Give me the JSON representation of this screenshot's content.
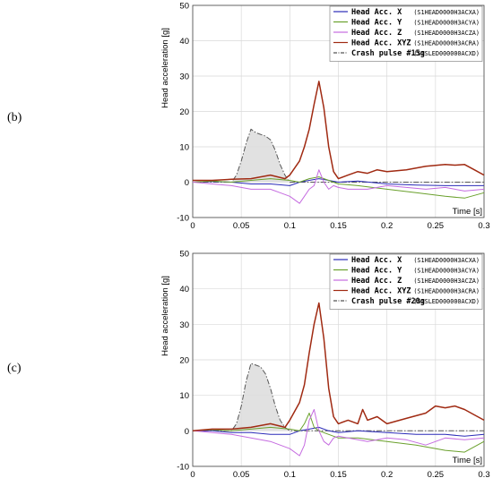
{
  "chart_data": [
    {
      "type": "line",
      "panel_label": "(b)",
      "xlabel": "Time [s]",
      "ylabel": "Head acceleration [g]",
      "xlim": [
        0,
        0.3
      ],
      "ylim": [
        -10,
        50
      ],
      "xticks": [
        "0",
        "0.05",
        "0.1",
        "0.15",
        "0.2",
        "0.25",
        "0.3"
      ],
      "yticks": [
        "-10",
        "0",
        "10",
        "20",
        "30",
        "40",
        "50"
      ],
      "grid": true,
      "legend_position": "top-right",
      "series": [
        {
          "name": "Head Acc. X",
          "code": "(S1HEAD0000H3ACXA)",
          "color": "#2b2bb8",
          "style": "solid",
          "x": [
            0,
            0.02,
            0.04,
            0.06,
            0.08,
            0.1,
            0.11,
            0.12,
            0.13,
            0.14,
            0.15,
            0.17,
            0.2,
            0.23,
            0.26,
            0.28,
            0.3
          ],
          "y": [
            0,
            0.2,
            0,
            -0.5,
            -0.5,
            -1,
            0,
            0.5,
            1,
            0.5,
            0,
            0.3,
            -0.5,
            -0.8,
            -1,
            -1,
            -1
          ]
        },
        {
          "name": "Head Acc. Y",
          "code": "(S1HEAD0000H3ACYA)",
          "color": "#6aa02c",
          "style": "solid",
          "x": [
            0,
            0.02,
            0.04,
            0.06,
            0.08,
            0.1,
            0.11,
            0.12,
            0.13,
            0.14,
            0.15,
            0.17,
            0.2,
            0.23,
            0.26,
            0.28,
            0.3
          ],
          "y": [
            0,
            0.3,
            0,
            0.5,
            1,
            0.5,
            0,
            1,
            1.5,
            0.5,
            -0.5,
            -1,
            -2,
            -3,
            -4,
            -4.5,
            -3
          ]
        },
        {
          "name": "Head Acc. Z",
          "code": "(S1HEAD0000H3ACZA)",
          "color": "#c56be0",
          "style": "solid",
          "x": [
            0,
            0.02,
            0.04,
            0.06,
            0.08,
            0.09,
            0.1,
            0.11,
            0.115,
            0.12,
            0.125,
            0.13,
            0.135,
            0.14,
            0.145,
            0.15,
            0.16,
            0.18,
            0.2,
            0.22,
            0.24,
            0.26,
            0.28,
            0.3
          ],
          "y": [
            0,
            -0.5,
            -1,
            -2,
            -2,
            -3,
            -4,
            -6,
            -4,
            -2,
            -1,
            3.5,
            0,
            -2,
            -1,
            -1.5,
            -2,
            -2,
            -1,
            -1.5,
            -2,
            -1.5,
            -2.5,
            -2
          ]
        },
        {
          "name": "Head Acc. XYZ",
          "code": "(S1HEAD0000H3ACRA)",
          "color": "#a02a12",
          "style": "solid",
          "x": [
            0,
            0.02,
            0.04,
            0.06,
            0.08,
            0.095,
            0.1,
            0.11,
            0.115,
            0.12,
            0.125,
            0.13,
            0.135,
            0.14,
            0.145,
            0.15,
            0.16,
            0.17,
            0.18,
            0.19,
            0.2,
            0.22,
            0.24,
            0.26,
            0.27,
            0.28,
            0.29,
            0.3
          ],
          "y": [
            0.5,
            0.5,
            0.8,
            1,
            2,
            1,
            2,
            6,
            10,
            15,
            22,
            28.5,
            21,
            10,
            3,
            1,
            2,
            3,
            2.5,
            3.5,
            3,
            3.5,
            4.5,
            5,
            4.8,
            5,
            3.5,
            2
          ]
        },
        {
          "name": "Crash pulse #15g",
          "code": "(S1SLED000000ACXD)",
          "color": "#555555",
          "style": "dashdot",
          "fill": "#dcdcdc",
          "x": [
            0,
            0.02,
            0.04,
            0.045,
            0.05,
            0.055,
            0.06,
            0.065,
            0.07,
            0.075,
            0.08,
            0.085,
            0.09,
            0.095,
            0.1,
            0.11,
            0.13,
            0.15,
            0.2,
            0.25,
            0.3
          ],
          "y": [
            0,
            0,
            0,
            2,
            6,
            11,
            15,
            14,
            13.5,
            13,
            12,
            9,
            5,
            2,
            0,
            0,
            0,
            0,
            0,
            0,
            0
          ]
        }
      ]
    },
    {
      "type": "line",
      "panel_label": "(c)",
      "xlabel": "Time [s]",
      "ylabel": "Head acceleration [g]",
      "xlim": [
        0,
        0.3
      ],
      "ylim": [
        -10,
        50
      ],
      "xticks": [
        "0",
        "0.05",
        "0.1",
        "0.15",
        "0.2",
        "0.25",
        "0.3"
      ],
      "yticks": [
        "-10",
        "0",
        "10",
        "20",
        "30",
        "40",
        "50"
      ],
      "grid": true,
      "legend_position": "top-right",
      "series": [
        {
          "name": "Head Acc. X",
          "code": "(S1HEAD0000H3ACXA)",
          "color": "#2b2bb8",
          "style": "solid",
          "x": [
            0,
            0.02,
            0.04,
            0.06,
            0.08,
            0.1,
            0.11,
            0.12,
            0.13,
            0.14,
            0.15,
            0.17,
            0.2,
            0.23,
            0.26,
            0.28,
            0.3
          ],
          "y": [
            0,
            0,
            -0.5,
            -0.5,
            -1,
            -1,
            0,
            0.5,
            1,
            0,
            -0.5,
            0,
            -0.5,
            -1,
            -1,
            -1.5,
            -1
          ]
        },
        {
          "name": "Head Acc. Y",
          "code": "(S1HEAD0000H3ACYA)",
          "color": "#6aa02c",
          "style": "solid",
          "x": [
            0,
            0.02,
            0.04,
            0.06,
            0.08,
            0.1,
            0.11,
            0.115,
            0.12,
            0.125,
            0.13,
            0.14,
            0.15,
            0.17,
            0.2,
            0.23,
            0.26,
            0.28,
            0.3
          ],
          "y": [
            0,
            0.3,
            0,
            0.5,
            1,
            0.5,
            0,
            2,
            5,
            1,
            0,
            -1,
            -2,
            -2,
            -3,
            -4,
            -5.5,
            -6,
            -3
          ]
        },
        {
          "name": "Head Acc. Z",
          "code": "(S1HEAD0000H3ACZA)",
          "color": "#c56be0",
          "style": "solid",
          "x": [
            0,
            0.02,
            0.04,
            0.06,
            0.08,
            0.09,
            0.1,
            0.11,
            0.115,
            0.12,
            0.125,
            0.13,
            0.135,
            0.14,
            0.145,
            0.15,
            0.16,
            0.18,
            0.2,
            0.22,
            0.24,
            0.26,
            0.28,
            0.3
          ],
          "y": [
            0,
            -0.5,
            -1,
            -2,
            -3,
            -4,
            -5,
            -7,
            -4,
            3,
            6,
            0,
            -3,
            -4,
            -2,
            -1.5,
            -2,
            -3,
            -2,
            -2.5,
            -4,
            -2,
            -2.5,
            -2
          ]
        },
        {
          "name": "Head Acc. XYZ",
          "code": "(S1HEAD0000H3ACRA)",
          "color": "#a02a12",
          "style": "solid",
          "x": [
            0,
            0.02,
            0.04,
            0.06,
            0.08,
            0.095,
            0.1,
            0.11,
            0.115,
            0.12,
            0.125,
            0.13,
            0.135,
            0.14,
            0.145,
            0.15,
            0.16,
            0.17,
            0.175,
            0.18,
            0.19,
            0.2,
            0.22,
            0.24,
            0.25,
            0.26,
            0.27,
            0.28,
            0.29,
            0.3
          ],
          "y": [
            0,
            0.5,
            0.5,
            1,
            2,
            1,
            3,
            8,
            13,
            22,
            30,
            36,
            26,
            12,
            4,
            2,
            3,
            2,
            6,
            3,
            4,
            2,
            3.5,
            5,
            7,
            6.5,
            7,
            6,
            4.5,
            3
          ]
        },
        {
          "name": "Crash pulse #20g",
          "code": "(S1SLED000000ACXD)",
          "color": "#555555",
          "style": "dashdot",
          "fill": "#dcdcdc",
          "x": [
            0,
            0.02,
            0.04,
            0.045,
            0.05,
            0.055,
            0.06,
            0.065,
            0.07,
            0.075,
            0.08,
            0.085,
            0.09,
            0.095,
            0.1,
            0.11,
            0.13,
            0.15,
            0.2,
            0.25,
            0.3
          ],
          "y": [
            0,
            0,
            0,
            2,
            7,
            14,
            19,
            18.5,
            18,
            16,
            12,
            7,
            3,
            1,
            0,
            0,
            0,
            0,
            0,
            0,
            0
          ]
        }
      ]
    }
  ]
}
